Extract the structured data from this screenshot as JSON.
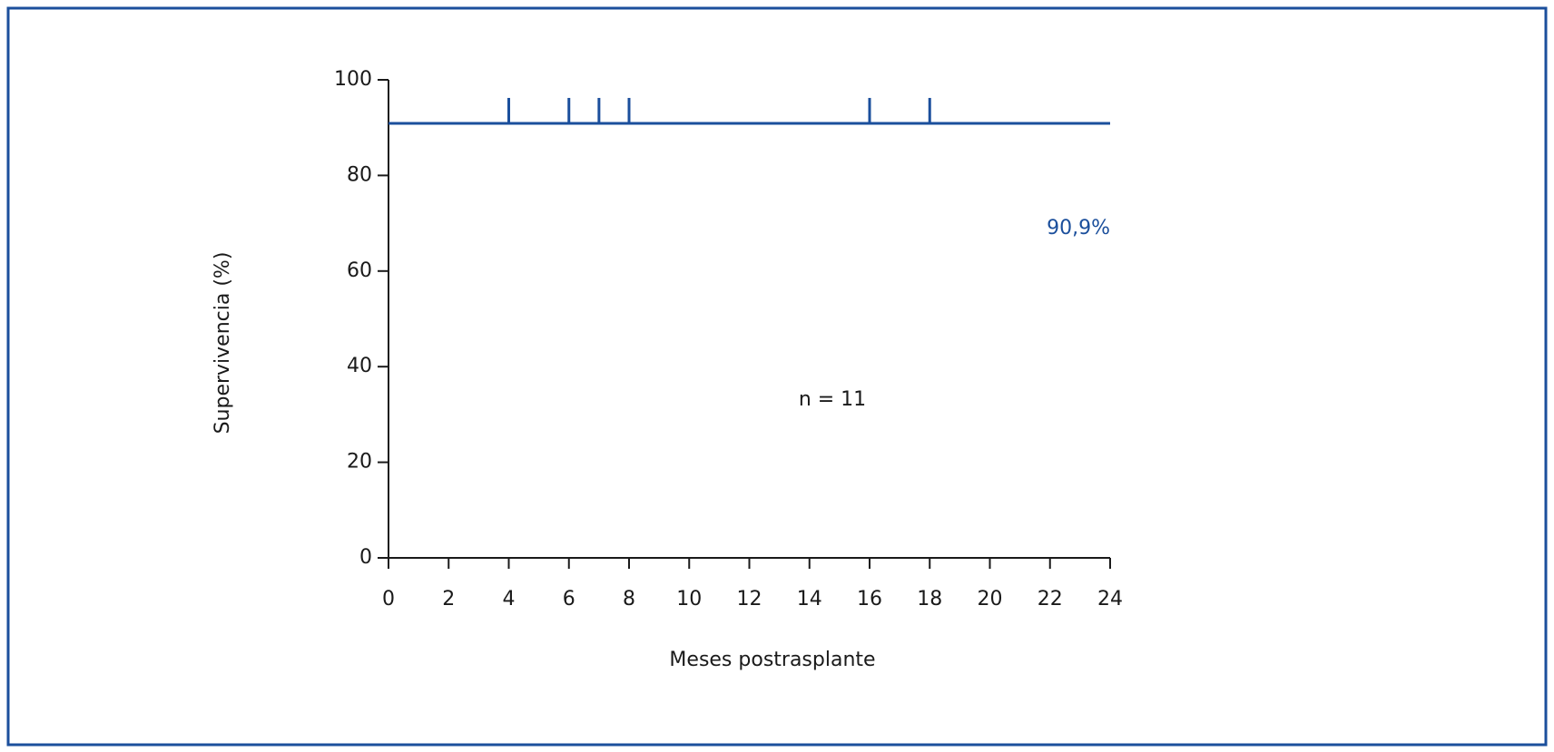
{
  "chart_data": {
    "type": "line",
    "xlabel": "Meses postrasplante",
    "ylabel": "Supervivencia (%)",
    "annotation": "n = 11",
    "color": "#1b4f9c",
    "x": [
      0,
      24
    ],
    "values": [
      90.9,
      90.9
    ],
    "value_labels": [
      null,
      "90,9%"
    ],
    "censored": {
      "x": [
        4,
        6,
        7,
        8,
        16,
        18
      ],
      "values": [
        90.9,
        90.9,
        90.9,
        90.9,
        90.9,
        90.9
      ]
    },
    "xlim": [
      0,
      24
    ],
    "xticks": [
      0,
      2,
      4,
      6,
      8,
      10,
      12,
      14,
      16,
      18,
      20,
      22,
      24
    ],
    "ylim": [
      0,
      100
    ],
    "yticks": [
      0,
      20,
      40,
      60,
      80,
      100
    ],
    "grid": false
  }
}
